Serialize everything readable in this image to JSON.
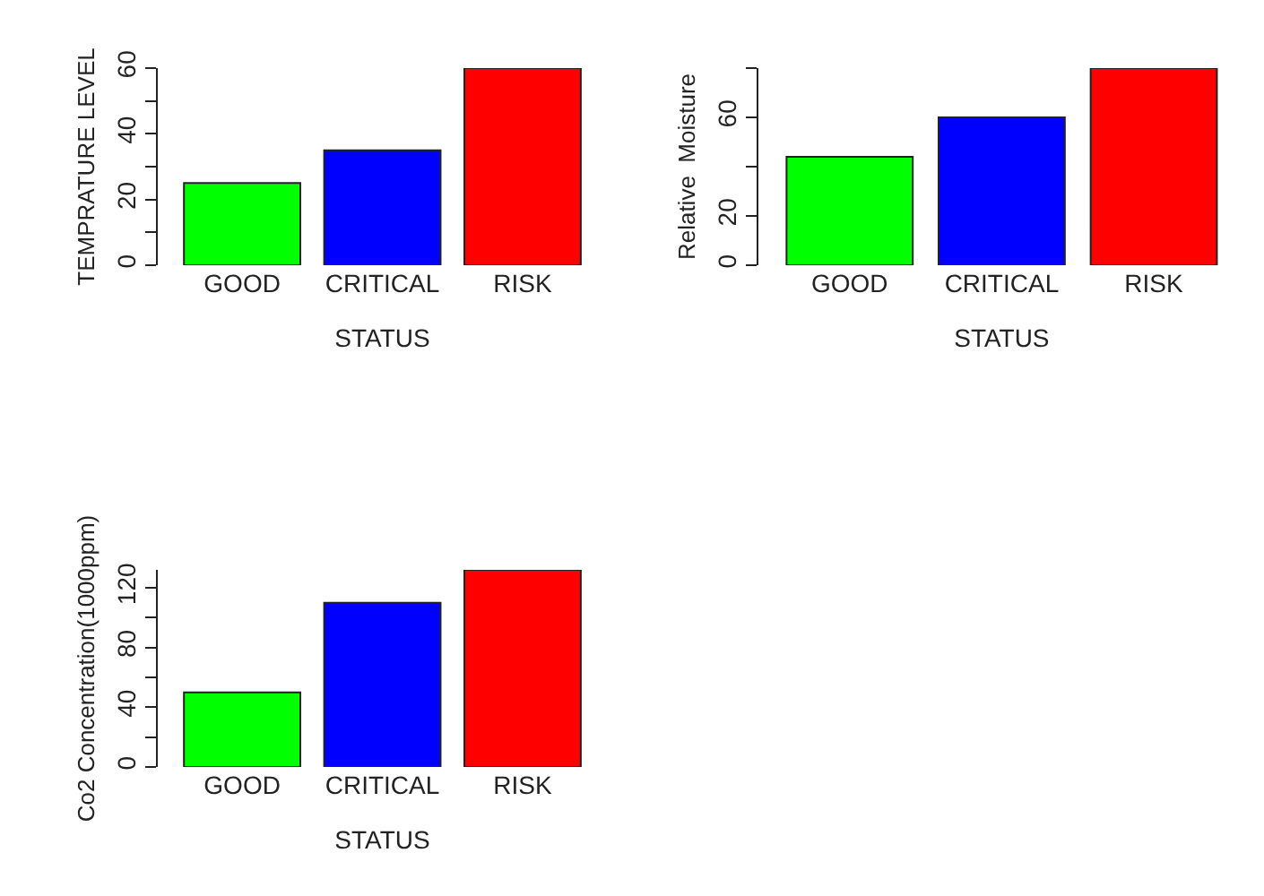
{
  "chart_data": [
    {
      "type": "bar",
      "categories": [
        "GOOD",
        "CRITICAL",
        "RISK"
      ],
      "values": [
        25,
        35,
        60
      ],
      "colors": [
        "#00ff00",
        "#0000ff",
        "#ff0000"
      ],
      "xlabel": "STATUS",
      "ylabel": "TEMPRATURE LEVEL",
      "ylim": [
        0,
        60
      ],
      "yticks": [
        0,
        {
          "value": 10,
          "label": null
        },
        20,
        {
          "value": 30,
          "label": null
        },
        40,
        {
          "value": 50,
          "label": null
        },
        60
      ]
    },
    {
      "type": "bar",
      "categories": [
        "GOOD",
        "CRITICAL",
        "RISK"
      ],
      "values": [
        44,
        60,
        80
      ],
      "colors": [
        "#00ff00",
        "#0000ff",
        "#ff0000"
      ],
      "xlabel": "STATUS",
      "ylabel": "Relative  Moisture",
      "ylim": [
        0,
        80
      ],
      "yticks": [
        0,
        20,
        {
          "value": 40,
          "label": null
        },
        60,
        {
          "value": 80,
          "label": null
        }
      ]
    },
    {
      "type": "bar",
      "categories": [
        "GOOD",
        "CRITICAL",
        "RISK"
      ],
      "values": [
        50,
        110,
        132
      ],
      "colors": [
        "#00ff00",
        "#0000ff",
        "#ff0000"
      ],
      "xlabel": "STATUS",
      "ylabel": "Co2 Concentration(1000ppm)",
      "ylim": [
        0,
        132
      ],
      "yticks": [
        0,
        {
          "value": 20,
          "label": null
        },
        40,
        {
          "value": 60,
          "label": null
        },
        80,
        {
          "value": 100,
          "label": null
        },
        120
      ]
    }
  ]
}
